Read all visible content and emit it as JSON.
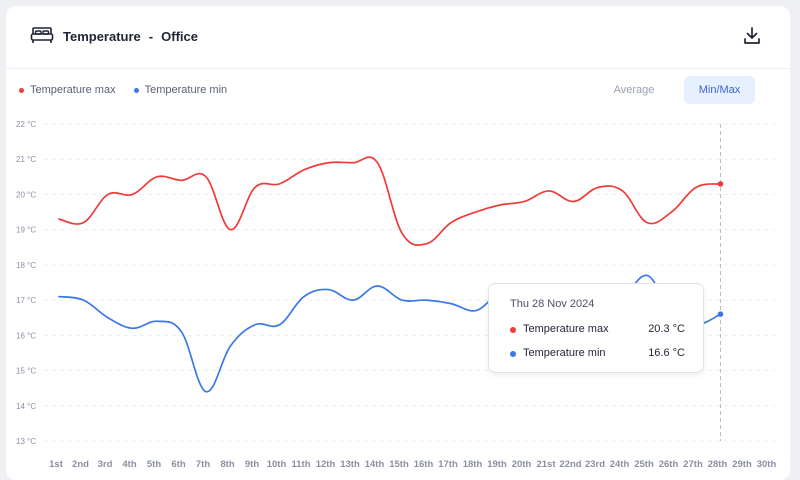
{
  "header": {
    "metric": "Temperature",
    "separator": "-",
    "location": "Office",
    "icon": "bed-icon",
    "download_icon": "download-icon"
  },
  "legend": [
    {
      "label": "Temperature max",
      "color": "#ef3b39"
    },
    {
      "label": "Temperature min",
      "color": "#3b78e7"
    }
  ],
  "toggles": {
    "average_label": "Average",
    "minmax_label": "Min/Max",
    "selected": "Min/Max"
  },
  "tooltip": {
    "date": "Thu 28 Nov 2024",
    "rows": [
      {
        "label": "Temperature max",
        "value": "20.3 °C",
        "color": "#ef3b39"
      },
      {
        "label": "Temperature min",
        "value": "16.6 °C",
        "color": "#3b78e7"
      }
    ]
  },
  "chart_data": {
    "type": "line",
    "ylim": [
      13,
      22
    ],
    "y_ticks": [
      "22 °C",
      "21 °C",
      "20 °C",
      "19 °C",
      "18 °C",
      "17 °C",
      "16 °C",
      "15 °C",
      "14 °C",
      "13 °C"
    ],
    "y_tick_values": [
      22,
      21,
      20,
      19,
      18,
      17,
      16,
      15,
      14,
      13
    ],
    "categories": [
      "1st",
      "2nd",
      "3rd",
      "4th",
      "5th",
      "6th",
      "7th",
      "8th",
      "9th",
      "10th",
      "11th",
      "12th",
      "13th",
      "14th",
      "15th",
      "16th",
      "17th",
      "18th",
      "19th",
      "20th",
      "21st",
      "22nd",
      "23rd",
      "24th",
      "25th",
      "26th",
      "27th",
      "28th",
      "29th",
      "30th"
    ],
    "grid": true,
    "highlighted_category": "28th",
    "series": [
      {
        "name": "Temperature max",
        "color": "#ef3b39",
        "values": [
          19.3,
          19.2,
          20.0,
          20.0,
          20.5,
          20.4,
          20.5,
          19.0,
          20.2,
          20.3,
          20.7,
          20.9,
          20.9,
          20.9,
          18.9,
          18.6,
          19.2,
          19.5,
          19.7,
          19.8,
          20.1,
          19.8,
          20.2,
          20.1,
          19.2,
          19.5,
          20.2,
          20.3,
          null,
          null
        ]
      },
      {
        "name": "Temperature min",
        "color": "#3b78e7",
        "values": [
          17.1,
          17.0,
          16.5,
          16.2,
          16.4,
          16.1,
          14.4,
          15.7,
          16.3,
          16.3,
          17.1,
          17.3,
          17.0,
          17.4,
          17.0,
          17.0,
          16.9,
          16.7,
          17.1,
          16.4,
          16.0,
          15.6,
          15.0,
          16.8,
          17.7,
          16.6,
          16.3,
          16.6,
          null,
          null
        ]
      }
    ]
  }
}
